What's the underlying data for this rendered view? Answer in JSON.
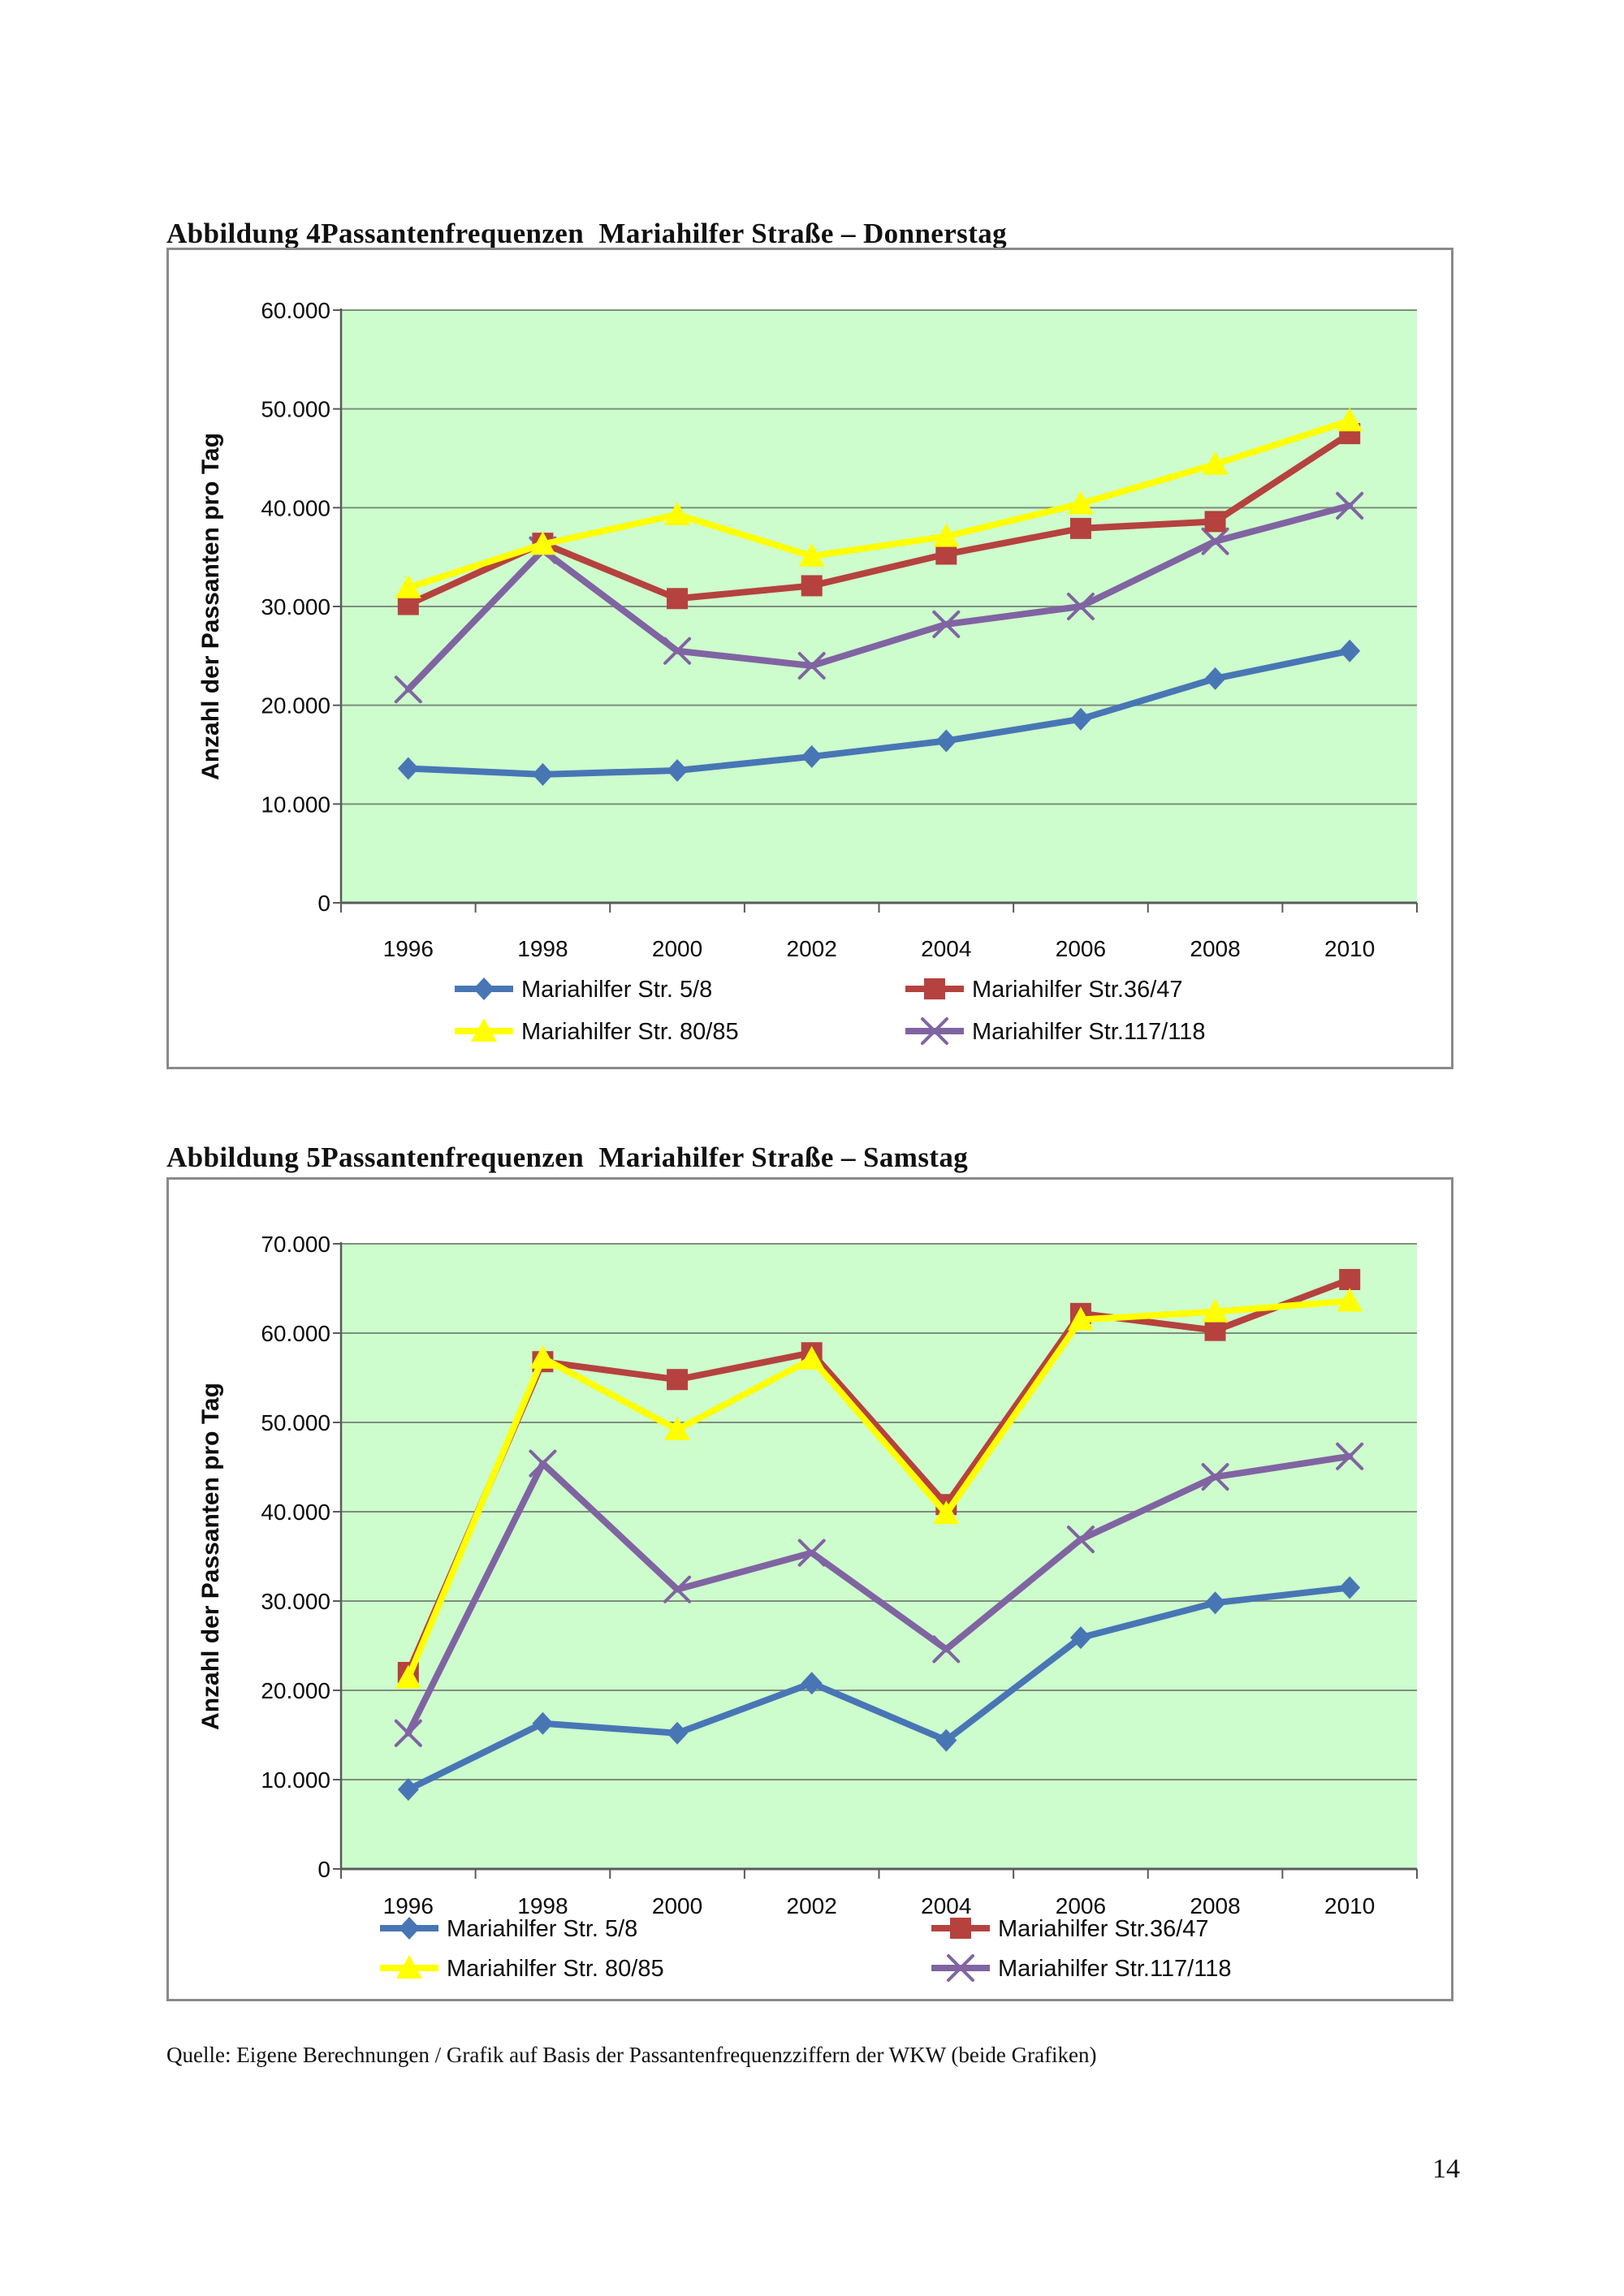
{
  "page": {
    "source": "Quelle: Eigene Berechnungen / Grafik auf Basis der Passantenfrequenzziffern der WKW (beide Grafiken)",
    "number": "14"
  },
  "figures": [
    {
      "title": "Abbildung 4Passantenfrequenzen  Mariahilfer Straße – Donnerstag"
    },
    {
      "title": "Abbildung 5Passantenfrequenzen  Mariahilfer Straße – Samstag"
    }
  ],
  "chart_data": [
    {
      "type": "line",
      "title": "",
      "categories": [
        "1996",
        "1998",
        "2000",
        "2002",
        "2004",
        "2006",
        "2008",
        "2010"
      ],
      "xlabel": "",
      "ylabel": "Anzahl der Passanten pro Tag",
      "ylim": [
        0,
        60000
      ],
      "ytick_step": 10000,
      "ytick_labels": [
        "0",
        "10.000",
        "20.000",
        "30.000",
        "40.000",
        "50.000",
        "60.000"
      ],
      "grid": true,
      "legend_position": "bottom",
      "plot_bg": "#CDFCCD",
      "series": [
        {
          "name": "Mariahilfer Str. 5/8",
          "color": "#4876B5",
          "marker": "diamond",
          "values": [
            13600,
            13000,
            13400,
            14800,
            16400,
            18600,
            22700,
            25500
          ]
        },
        {
          "name": "Mariahilfer Str.36/47",
          "color": "#B5423E",
          "marker": "square",
          "values": [
            30200,
            36400,
            30800,
            32100,
            35300,
            37900,
            38600,
            47500
          ]
        },
        {
          "name": "Mariahilfer Str. 80/85",
          "color": "#FFFF00",
          "marker": "triangle",
          "values": [
            31900,
            36300,
            39300,
            35100,
            37100,
            40400,
            44400,
            48800
          ]
        },
        {
          "name": "Mariahilfer Str.117/118",
          "color": "#8064A2",
          "marker": "x",
          "values": [
            21600,
            35700,
            25500,
            24000,
            28200,
            30000,
            36600,
            40200
          ]
        }
      ]
    },
    {
      "type": "line",
      "title": "",
      "categories": [
        "1996",
        "1998",
        "2000",
        "2002",
        "2004",
        "2006",
        "2008",
        "2010"
      ],
      "xlabel": "",
      "ylabel": "Anzahl der Passanten pro Tag",
      "ylim": [
        0,
        70000
      ],
      "ytick_step": 10000,
      "ytick_labels": [
        "0",
        "10.000",
        "20.000",
        "30.000",
        "40.000",
        "50.000",
        "60.000",
        "70.000"
      ],
      "grid": true,
      "legend_position": "bottom",
      "plot_bg": "#CDFCCD",
      "series": [
        {
          "name": "Mariahilfer Str. 5/8",
          "color": "#4876B5",
          "marker": "diamond",
          "values": [
            8900,
            16300,
            15200,
            20800,
            14400,
            25900,
            29800,
            31500
          ]
        },
        {
          "name": "Mariahilfer Str.36/47",
          "color": "#B5423E",
          "marker": "square",
          "values": [
            22000,
            56800,
            54800,
            57800,
            40800,
            62200,
            60300,
            66000
          ]
        },
        {
          "name": "Mariahilfer Str. 80/85",
          "color": "#FFFF00",
          "marker": "triangle",
          "values": [
            21400,
            57200,
            49200,
            57100,
            39800,
            61500,
            62400,
            63600
          ]
        },
        {
          "name": "Mariahilfer Str.117/118",
          "color": "#8064A2",
          "marker": "x",
          "values": [
            15200,
            45400,
            31300,
            35400,
            24600,
            36900,
            43900,
            46200
          ]
        }
      ]
    }
  ]
}
